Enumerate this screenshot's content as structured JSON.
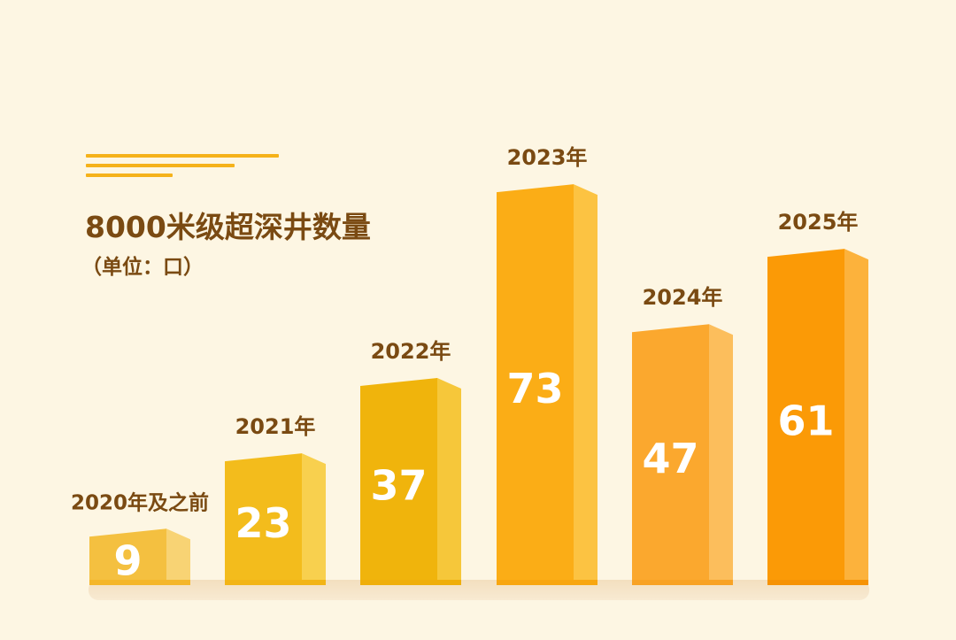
{
  "chart_data": {
    "type": "bar",
    "title": "8000米级超深井数量",
    "subtitle": "（单位：口）",
    "categories": [
      "2020年及之前",
      "2021年",
      "2022年",
      "2023年",
      "2024年",
      "2025年"
    ],
    "values": [
      9,
      23,
      37,
      73,
      47,
      61
    ],
    "ylim": [
      0,
      82
    ],
    "grid": false,
    "colors": {
      "bar_fronts": [
        "#f4c040",
        "#f3bc1c",
        "#f0b40c",
        "#fbad16",
        "#fba82e",
        "#fb9a06"
      ],
      "bar_sides": [
        "#f8d374",
        "#f8d04e",
        "#f6c73a",
        "#fcc342",
        "#fcbe5c",
        "#fcb23c"
      ],
      "bar_tops": [
        "#f7cd60",
        "#f6c83a",
        "#f4c02a",
        "#fcbd34",
        "#fcb84c",
        "#fbab30"
      ],
      "base_strip": [
        "#f4b62a",
        "#f2b416",
        "#efae0a",
        "#f8a610",
        "#f8a224",
        "#f69204"
      ],
      "label_color": "#7a4a12",
      "value_color": "#ffffff",
      "accent_lines": "#f5b21a",
      "background": "#fdf6e3"
    }
  }
}
